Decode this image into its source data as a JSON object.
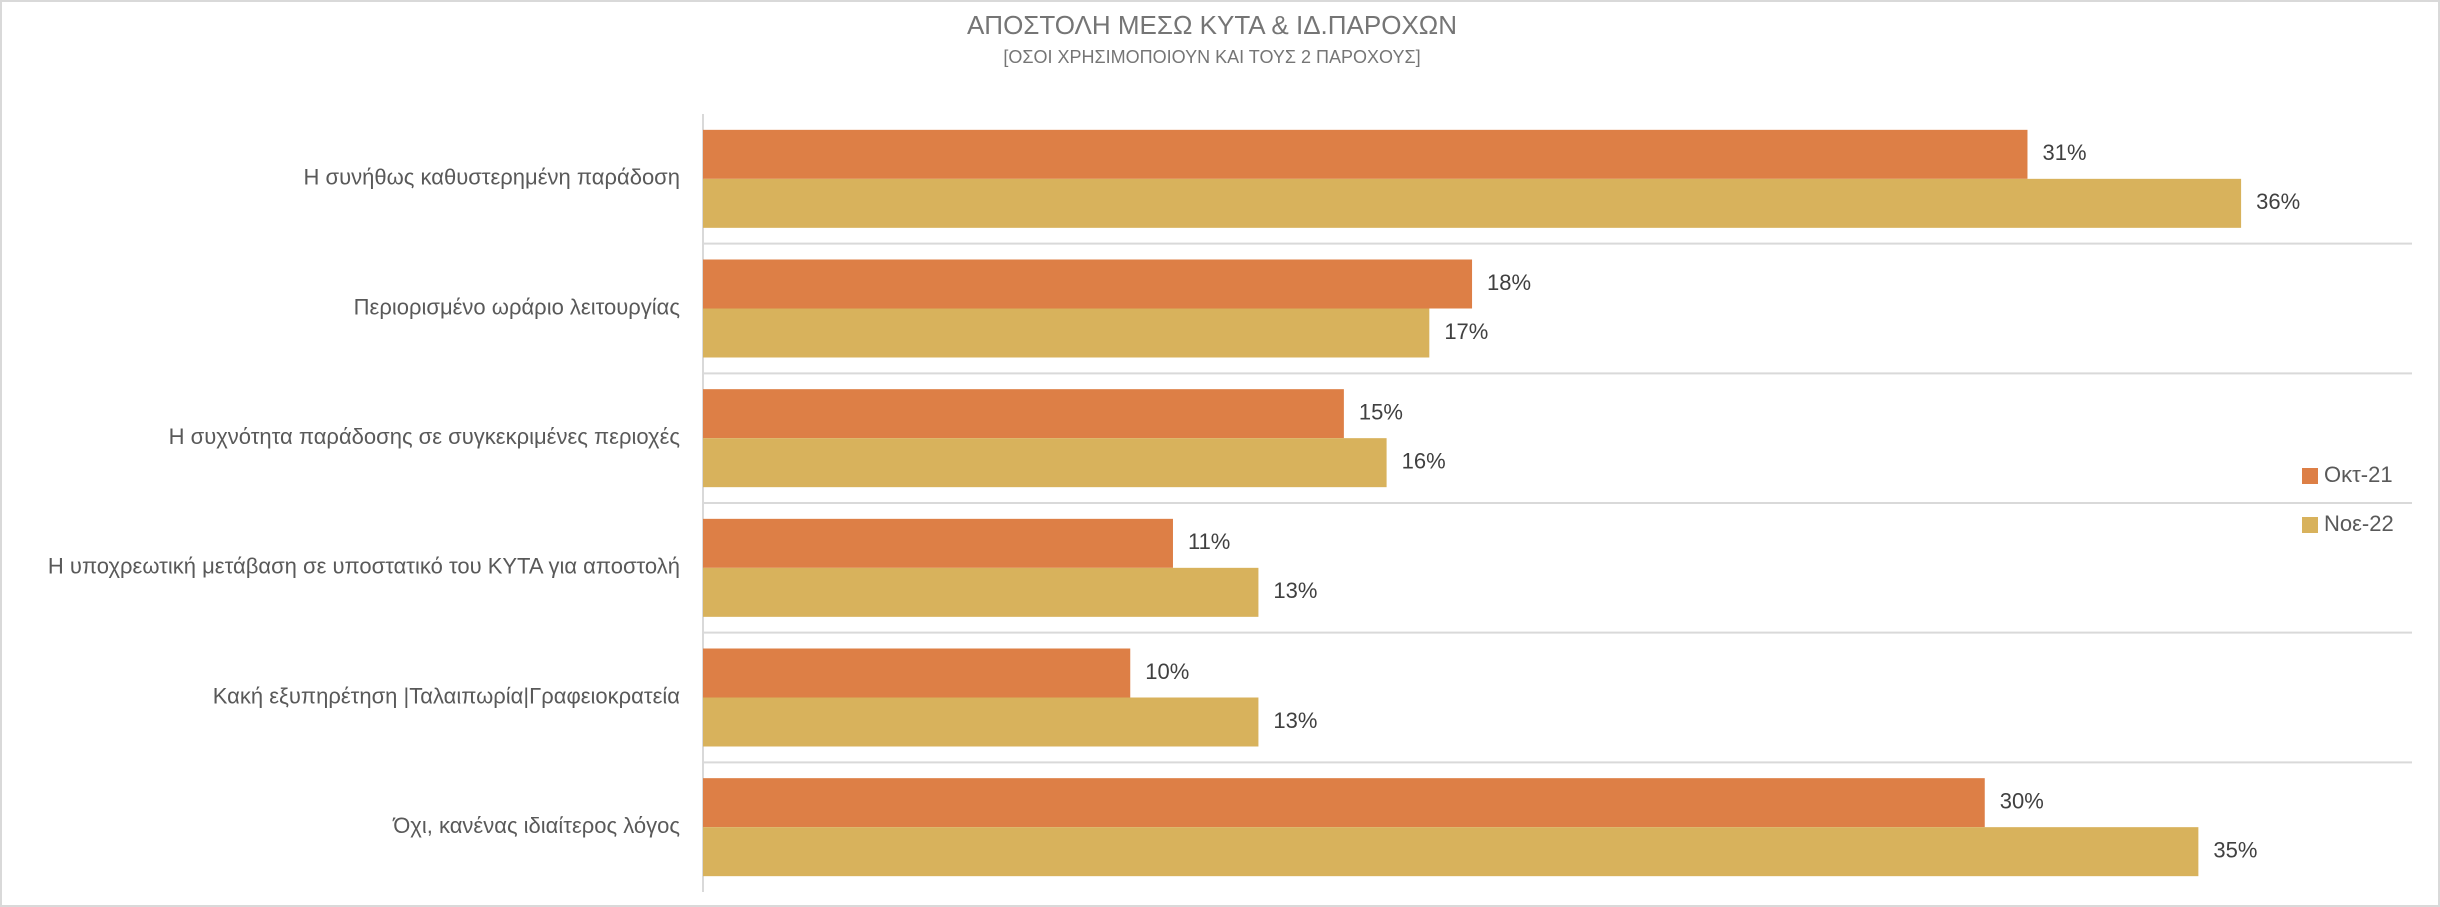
{
  "chart_data": {
    "type": "bar",
    "orientation": "horizontal",
    "title": "ΑΠΟΣΤΟΛΗ ΜΕΣΩ ΚΥΤΑ & ΙΔ.ΠΑΡΟΧΩΝ",
    "subtitle": "[ΟΣΟΙ ΧΡΗΣΙΜΟΠΟΙΟΥΝ ΚΑΙ ΤΟΥΣ 2 ΠΑΡΟΧΟΥΣ]",
    "categories": [
      "Η συνήθως καθυστερημένη παράδοση",
      "Περιορισμένο ωράριο λειτουργίας",
      "Η συχνότητα παράδοσης σε συγκεκριμένες περιοχές",
      "Η υποχρεωτική μετάβαση σε υποστατικό του ΚΥΤΑ για αποστολή",
      "Κακή εξυπηρέτηση  |Ταλαιπωρία|Γραφειοκρατεία",
      "Όχι, κανένας ιδιαίτερος λόγος"
    ],
    "series": [
      {
        "name": "Οκτ-21",
        "color": "#dd7f46",
        "values": [
          31,
          18,
          15,
          11,
          10,
          30
        ],
        "value_labels": [
          "31%",
          "18%",
          "15%",
          "11%",
          "10%",
          "30%"
        ]
      },
      {
        "name": "Νοε-22",
        "color": "#d8b25c",
        "values": [
          36,
          17,
          16,
          13,
          13,
          35
        ],
        "value_labels": [
          "36%",
          "17%",
          "16%",
          "13%",
          "13%",
          "35%"
        ]
      }
    ],
    "xlim": [
      0,
      40
    ],
    "legend": "right"
  }
}
